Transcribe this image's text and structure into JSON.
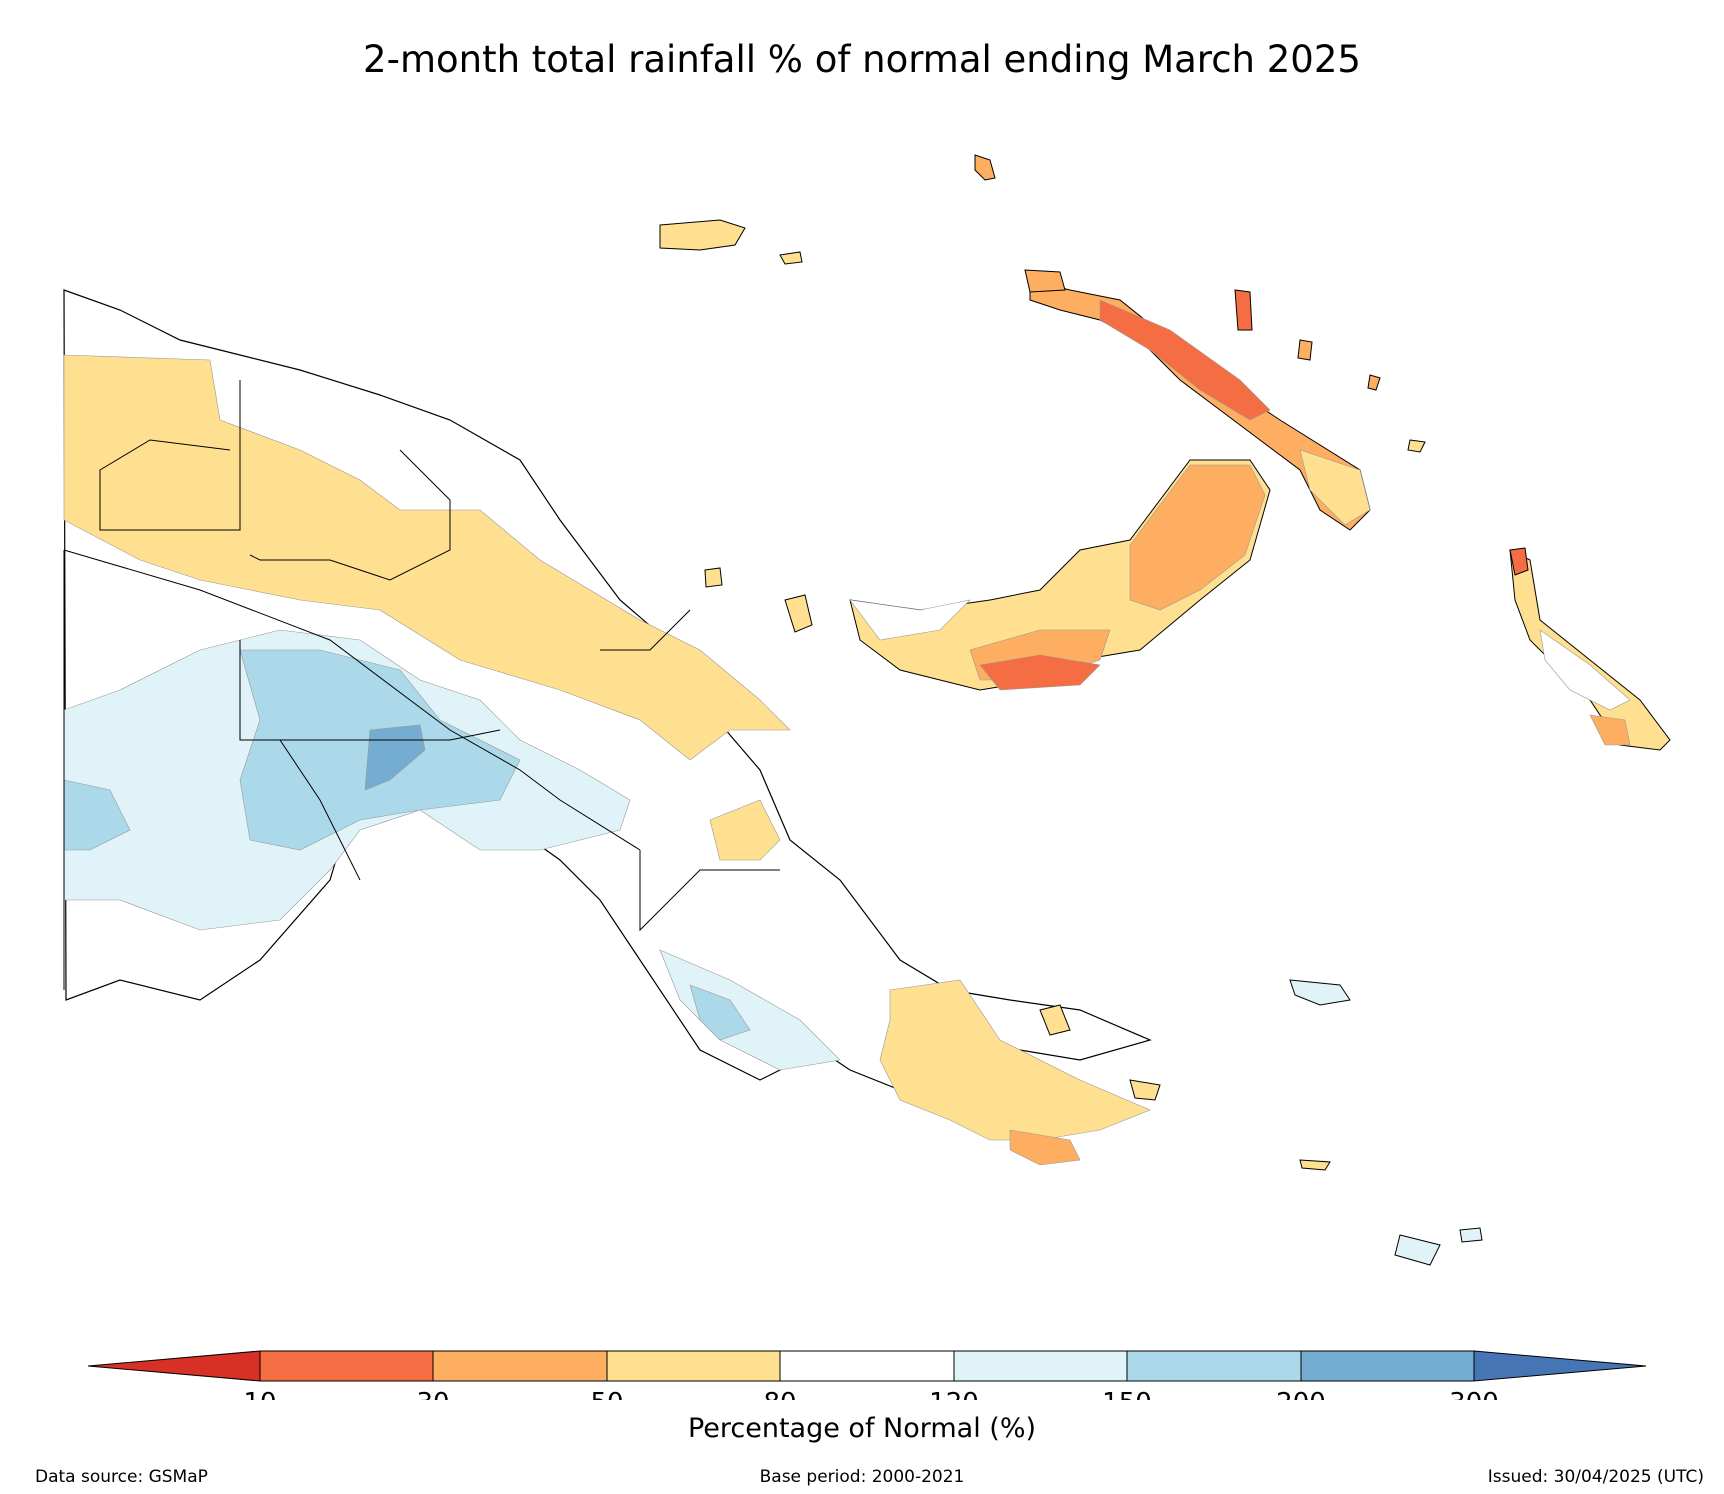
{
  "title": "2-month total rainfall % of normal ending March 2025",
  "colorbar": {
    "label": "Percentage of Normal (%)",
    "ticks": [
      "10",
      "30",
      "50",
      "80",
      "120",
      "150",
      "200",
      "300"
    ],
    "colors": {
      "below_10": "#d73027",
      "10_30": "#f46d43",
      "30_50": "#fdae61",
      "50_80": "#fee090",
      "80_120": "#ffffff",
      "120_150": "#e0f3f8",
      "150_200": "#abd9e9",
      "200_300": "#74add1",
      "above_300": "#4575b4"
    }
  },
  "footer": {
    "data_source": "Data source: GSMaP",
    "base_period": "Base period: 2000-2021",
    "issued": "Issued: 30/04/2025 (UTC)"
  }
}
